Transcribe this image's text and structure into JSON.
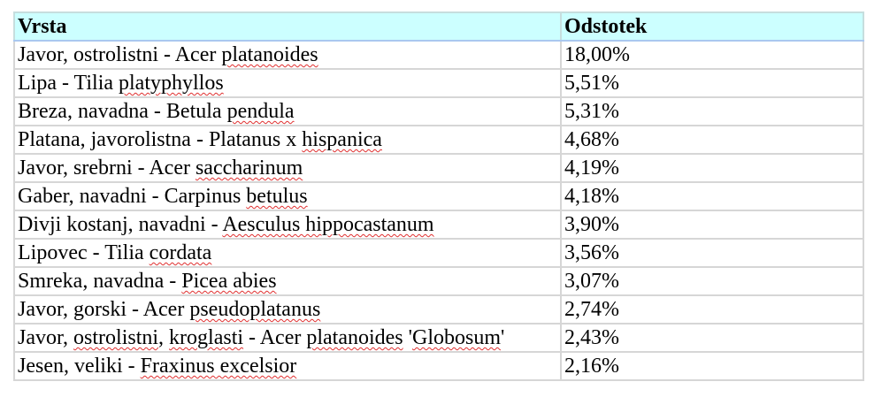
{
  "table": {
    "headers": [
      "Vrsta",
      "Odstotek"
    ],
    "rows": [
      {
        "species": [
          [
            "Javor, ostrolistni - Acer ",
            0
          ],
          [
            "platanoides",
            1
          ]
        ],
        "percent": "18,00%"
      },
      {
        "species": [
          [
            "Lipa - Tilia ",
            0
          ],
          [
            "platyphyllos",
            1
          ]
        ],
        "percent": "5,51%"
      },
      {
        "species": [
          [
            "Breza, navadna - Betula ",
            0
          ],
          [
            "pendula",
            1
          ]
        ],
        "percent": "5,31%"
      },
      {
        "species": [
          [
            "Platana, javorolistna - Platanus x ",
            0
          ],
          [
            "hispanica",
            1
          ]
        ],
        "percent": "4,68%"
      },
      {
        "species": [
          [
            "Javor, srebrni - Acer ",
            0
          ],
          [
            "saccharinum",
            1
          ]
        ],
        "percent": "4,19%"
      },
      {
        "species": [
          [
            "Gaber, navadni - Carpinus ",
            0
          ],
          [
            "betulus",
            1
          ]
        ],
        "percent": "4,18%"
      },
      {
        "species": [
          [
            "Divji kostanj, navadni - ",
            0
          ],
          [
            "Aesculus hippocastanum",
            1
          ]
        ],
        "percent": "3,90%"
      },
      {
        "species": [
          [
            "Lipovec - Tilia ",
            0
          ],
          [
            "cordata",
            1
          ]
        ],
        "percent": "3,56%"
      },
      {
        "species": [
          [
            "Smreka, navadna - ",
            0
          ],
          [
            "Picea abies",
            1
          ]
        ],
        "percent": "3,07%"
      },
      {
        "species": [
          [
            "Javor, gorski - Acer ",
            0
          ],
          [
            "pseudoplatanus",
            1
          ]
        ],
        "percent": "2,74%"
      },
      {
        "species": [
          [
            "Javor, ",
            0
          ],
          [
            "ostrolistni",
            1
          ],
          [
            ", ",
            0
          ],
          [
            "kroglasti",
            1
          ],
          [
            " - Acer ",
            0
          ],
          [
            "platanoides",
            1
          ],
          [
            " '",
            0
          ],
          [
            "Globosum",
            1
          ],
          [
            "'",
            0
          ]
        ],
        "percent": "2,43%"
      },
      {
        "species": [
          [
            "Jesen, veliki - ",
            0
          ],
          [
            "Fraxinus excelsior",
            1
          ]
        ],
        "percent": "2,16%"
      }
    ]
  }
}
